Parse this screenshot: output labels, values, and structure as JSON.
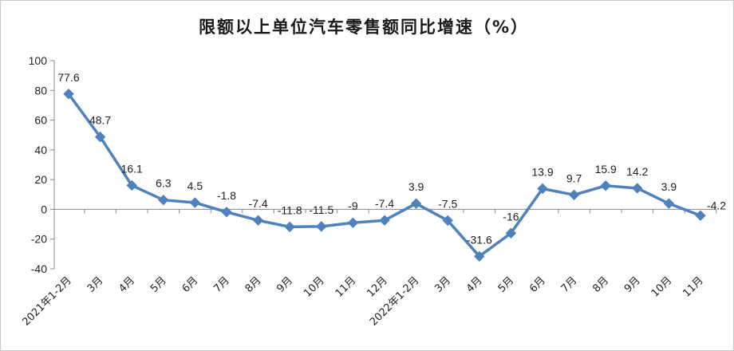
{
  "chart_data": {
    "type": "line",
    "title": "限额以上单位汽车零售额同比增速（%）",
    "xlabel": "",
    "ylabel": "",
    "ylim": [
      -40,
      100
    ],
    "yticks": [
      100,
      80,
      60,
      40,
      20,
      0,
      -20,
      -40
    ],
    "grid": false,
    "legend": "none",
    "categories": [
      "2021年1-2月",
      "3月",
      "4月",
      "5月",
      "6月",
      "7月",
      "8月",
      "9月",
      "10月",
      "11月",
      "12月",
      "2022年1-2月",
      "3月",
      "4月",
      "5月",
      "6月",
      "7月",
      "8月",
      "9月",
      "10月",
      "11月"
    ],
    "series": [
      {
        "color": "#4f81bd",
        "values": [
          77.6,
          48.7,
          16.1,
          6.3,
          4.5,
          -1.8,
          -7.4,
          -11.8,
          -11.5,
          -9,
          -7.4,
          3.9,
          -7.5,
          -31.6,
          -16,
          13.9,
          9.7,
          15.9,
          14.2,
          3.9,
          -4.2
        ],
        "labels": [
          "77.6",
          "48.7",
          "16.1",
          "6.3",
          "4.5",
          "-1.8",
          "-7.4",
          "-11.8",
          "-11.5",
          "-9",
          "-7.4",
          "3.9",
          "-7.5",
          "-31.6",
          "-16",
          "13.9",
          "9.7",
          "15.9",
          "14.2",
          "3.9",
          "-4.2"
        ]
      }
    ]
  }
}
